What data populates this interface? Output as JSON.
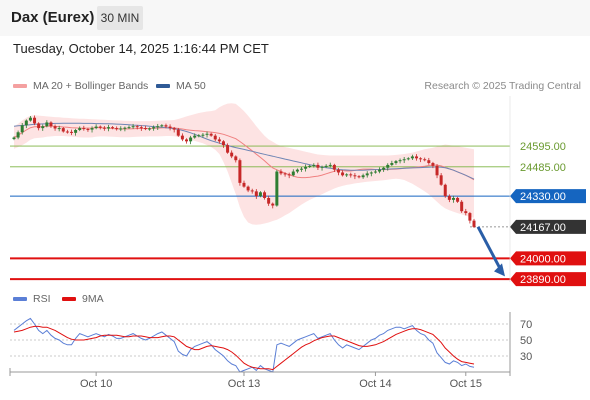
{
  "header": {
    "instrument": "Dax (Eurex)",
    "timeframe": "30 MIN",
    "datetime": "Tuesday, October 14, 2025 1:16:44 PM CET",
    "credit": "Research © 2025 Trading Central"
  },
  "legend": {
    "ma20": "MA 20 + Bollinger Bands",
    "ma50": "MA 50",
    "rsi": "RSI",
    "ma9": "9MA"
  },
  "colors": {
    "bollinger_fill": "#fde3e3",
    "ma20": "#f08080",
    "ma50": "#6f86b5",
    "candle_up": "#2e7d32",
    "candle_down": "#c62828",
    "support": "#e01010",
    "resistance": "#7cb342",
    "pivot": "#1565c0",
    "current": "#333333",
    "arrow": "#2a5ea7",
    "rsi": "#5b7fd6",
    "rsi_ma": "#e01010"
  },
  "chart_data": [
    {
      "type": "candlestick",
      "title": "",
      "x_tick_labels": [
        "Oct 10",
        "Oct 13",
        "Oct 14",
        "Oct 15"
      ],
      "levels": [
        {
          "name": "resistance",
          "value": 24595.0,
          "label": "24595.00"
        },
        {
          "name": "resistance",
          "value": 24485.0,
          "label": "24485.00"
        },
        {
          "name": "pivot",
          "value": 24330.0,
          "label": "24330.00"
        },
        {
          "name": "last",
          "value": 24167.0,
          "label": "24167.00"
        },
        {
          "name": "support",
          "value": 24000.0,
          "label": "24000.00"
        },
        {
          "name": "support",
          "value": 23890.0,
          "label": "23890.00"
        }
      ],
      "ylim": [
        23875,
        24860
      ],
      "close": [
        24640,
        24668,
        24705,
        24730,
        24745,
        24715,
        24690,
        24700,
        24720,
        24700,
        24688,
        24690,
        24672,
        24670,
        24665,
        24680,
        24690,
        24685,
        24682,
        24690,
        24698,
        24692,
        24688,
        24695,
        24690,
        24686,
        24688,
        24692,
        24695,
        24700,
        24695,
        24690,
        24685,
        24688,
        24695,
        24700,
        24705,
        24698,
        24690,
        24682,
        24650,
        24630,
        24620,
        24640,
        24650,
        24652,
        24655,
        24660,
        24650,
        24630,
        24620,
        24600,
        24560,
        24540,
        24520,
        24400,
        24380,
        24360,
        24355,
        24330,
        24350,
        24320,
        24290,
        24280,
        24460,
        24450,
        24445,
        24440,
        24460,
        24470,
        24475,
        24485,
        24490,
        24495,
        24480,
        24485,
        24490,
        24495,
        24470,
        24455,
        24440,
        24445,
        24440,
        24435,
        24430,
        24440,
        24450,
        24455,
        24460,
        24470,
        24480,
        24495,
        24505,
        24515,
        24520,
        24525,
        24530,
        24540,
        24530,
        24525,
        24520,
        24505,
        24490,
        24440,
        24390,
        24330,
        24310,
        24320,
        24300,
        24250,
        24240,
        24200,
        24167
      ],
      "ma20": [
        24640,
        24652,
        24666,
        24680,
        24692,
        24697,
        24697,
        24697,
        24700,
        24701,
        24699,
        24698,
        24696,
        24694,
        24692,
        24691,
        24690,
        24690,
        24690,
        24690,
        24693,
        24692,
        24691,
        24690,
        24688,
        24686,
        24686,
        24685,
        24686,
        24687,
        24688,
        24688,
        24688,
        24688,
        24689,
        24690,
        24691,
        24692,
        24692,
        24691,
        24688,
        24685,
        24681,
        24679,
        24677,
        24675,
        24673,
        24671,
        24669,
        24666,
        24662,
        24657,
        24650,
        24642,
        24634,
        24619,
        24603,
        24586,
        24570,
        24552,
        24535,
        24517,
        24497,
        24479,
        24469,
        24460,
        24451,
        24443,
        24436,
        24430,
        24428,
        24428,
        24430,
        24433,
        24436,
        24441,
        24448,
        24455,
        24461,
        24468,
        24465,
        24463,
        24463,
        24466,
        24470,
        24473,
        24473,
        24473,
        24471,
        24470,
        24470,
        24471,
        24472,
        24473,
        24475,
        24477,
        24479,
        24481,
        24483,
        24485,
        24488,
        24492,
        24494,
        24494,
        24490,
        24482,
        24474,
        24467,
        24458,
        24449,
        24440,
        24429,
        24416
      ],
      "bb_upper": [
        24700,
        24712,
        24730,
        24745,
        24755,
        24758,
        24756,
        24754,
        24752,
        24750,
        24748,
        24747,
        24745,
        24744,
        24742,
        24741,
        24740,
        24739,
        24738,
        24737,
        24736,
        24735,
        24734,
        24733,
        24732,
        24731,
        24730,
        24729,
        24728,
        24727,
        24727,
        24727,
        24727,
        24727,
        24728,
        24729,
        24730,
        24731,
        24732,
        24733,
        24738,
        24745,
        24752,
        24758,
        24764,
        24770,
        24774,
        24778,
        24780,
        24785,
        24800,
        24812,
        24820,
        24822,
        24818,
        24800,
        24780,
        24755,
        24728,
        24700,
        24674,
        24650,
        24630,
        24618,
        24605,
        24595,
        24590,
        24585,
        24580,
        24575,
        24570,
        24565,
        24560,
        24555,
        24550,
        24548,
        24546,
        24545,
        24545,
        24545,
        24545,
        24545,
        24545,
        24545,
        24545,
        24545,
        24545,
        24545,
        24545,
        24545,
        24545,
        24545,
        24546,
        24548,
        24550,
        24553,
        24556,
        24560,
        24566,
        24572,
        24578,
        24582,
        24586,
        24592,
        24598,
        24603,
        24600,
        24597,
        24594,
        24590,
        24586,
        24582,
        24578
      ],
      "bb_lower": [
        24580,
        24590,
        24600,
        24612,
        24628,
        24636,
        24638,
        24640,
        24644,
        24646,
        24648,
        24648,
        24648,
        24646,
        24645,
        24643,
        24641,
        24640,
        24640,
        24641,
        24644,
        24646,
        24646,
        24645,
        24644,
        24643,
        24642,
        24642,
        24642,
        24643,
        24644,
        24645,
        24645,
        24646,
        24646,
        24646,
        24647,
        24648,
        24648,
        24647,
        24643,
        24638,
        24633,
        24628,
        24622,
        24616,
        24610,
        24600,
        24590,
        24575,
        24553,
        24510,
        24460,
        24400,
        24340,
        24270,
        24220,
        24190,
        24180,
        24178,
        24180,
        24185,
        24190,
        24198,
        24205,
        24215,
        24228,
        24240,
        24255,
        24270,
        24285,
        24298,
        24310,
        24320,
        24330,
        24340,
        24350,
        24360,
        24370,
        24378,
        24384,
        24389,
        24393,
        24397,
        24400,
        24403,
        24406,
        24408,
        24410,
        24412,
        24414,
        24417,
        24420,
        24422,
        24420,
        24415,
        24405,
        24395,
        24382,
        24369,
        24355,
        24340,
        24320,
        24300,
        24280,
        24265,
        24255,
        24247,
        24240,
        24233,
        24226,
        24220,
        24215
      ],
      "ma50": [
        24700,
        24702,
        24704,
        24706,
        24708,
        24710,
        24711,
        24712,
        24713,
        24714,
        24715,
        24715,
        24716,
        24716,
        24716,
        24716,
        24716,
        24715,
        24715,
        24715,
        24714,
        24714,
        24713,
        24713,
        24712,
        24711,
        24710,
        24709,
        24708,
        24706,
        24705,
        24703,
        24702,
        24700,
        24698,
        24696,
        24694,
        24692,
        24690,
        24687,
        24683,
        24678,
        24672,
        24665,
        24657,
        24649,
        24640,
        24632,
        24624,
        24617,
        24610,
        24604,
        24598,
        24592,
        24587,
        24582,
        24577,
        24572,
        24567,
        24562,
        24556,
        24551,
        24546,
        24541,
        24536,
        24531,
        24526,
        24521,
        24516,
        24511,
        24506,
        24501,
        24496,
        24492,
        24488,
        24484,
        24480,
        24477,
        24474,
        24471,
        24469,
        24468,
        24467,
        24467,
        24467,
        24467,
        24468,
        24469,
        24470,
        24471,
        24472,
        24473,
        24474,
        24475,
        24476,
        24477,
        24478,
        24479,
        24480,
        24481,
        24482,
        24483,
        24484,
        24484,
        24483,
        24480,
        24474,
        24467,
        24458,
        24449,
        24440,
        24430,
        24420
      ]
    },
    {
      "type": "line",
      "title": "",
      "series": [
        {
          "name": "RSI",
          "values": [
            62,
            66,
            70,
            74,
            77,
            70,
            62,
            58,
            62,
            56,
            52,
            50,
            46,
            44,
            44,
            52,
            58,
            56,
            54,
            56,
            58,
            56,
            54,
            57,
            55,
            52,
            52,
            54,
            56,
            58,
            55,
            52,
            50,
            52,
            55,
            58,
            60,
            56,
            52,
            48,
            36,
            32,
            30,
            38,
            42,
            44,
            46,
            48,
            44,
            38,
            34,
            30,
            24,
            20,
            18,
            10,
            12,
            14,
            16,
            12,
            18,
            14,
            12,
            10,
            44,
            46,
            44,
            42,
            46,
            50,
            52,
            54,
            56,
            58,
            52,
            54,
            56,
            58,
            50,
            44,
            40,
            44,
            42,
            40,
            38,
            42,
            46,
            50,
            52,
            56,
            58,
            62,
            64,
            66,
            66,
            64,
            66,
            68,
            62,
            58,
            56,
            50,
            46,
            34,
            28,
            22,
            20,
            24,
            22,
            18,
            20,
            17,
            16
          ]
        },
        {
          "name": "9MA",
          "values": [
            60,
            61,
            62,
            64,
            66,
            67,
            67,
            66,
            66,
            64,
            62,
            59,
            56,
            53,
            51,
            50,
            50,
            50,
            51,
            52,
            53,
            55,
            56,
            56,
            56,
            56,
            55,
            54,
            54,
            55,
            55,
            55,
            54,
            53,
            53,
            53,
            54,
            55,
            55,
            54,
            50,
            46,
            42,
            40,
            38,
            38,
            40,
            42,
            43,
            42,
            41,
            40,
            38,
            35,
            31,
            26,
            21,
            18,
            16,
            15,
            14,
            14,
            14,
            13,
            17,
            21,
            25,
            29,
            33,
            37,
            41,
            44,
            46,
            49,
            51,
            53,
            54,
            55,
            55,
            53,
            51,
            49,
            47,
            45,
            43,
            42,
            42,
            43,
            44,
            46,
            48,
            51,
            54,
            57,
            59,
            61,
            63,
            64,
            64,
            63,
            61,
            59,
            57,
            52,
            47,
            40,
            35,
            30,
            26,
            23,
            22,
            21,
            20
          ]
        }
      ],
      "y_ticks": [
        30,
        50,
        70
      ],
      "ylim": [
        10,
        85
      ]
    }
  ]
}
